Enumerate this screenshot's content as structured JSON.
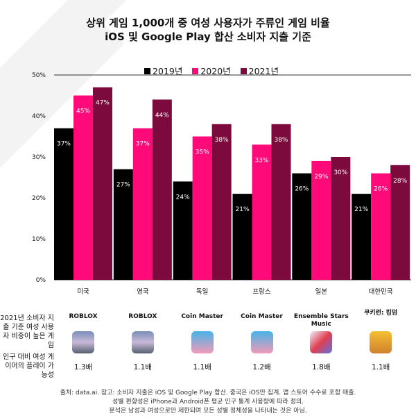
{
  "title": "상위 게임 1,000개 중 여성 사용자가 주류인 게임 비율",
  "subtitle": "iOS 및 Google Play 합산 소비자 지출 기준",
  "chart_data": {
    "type": "bar",
    "categories": [
      "미국",
      "영국",
      "독일",
      "프랑스",
      "일본",
      "대한민국"
    ],
    "series": [
      {
        "name": "2019년",
        "color": "#000000",
        "values": [
          37,
          27,
          24,
          21,
          26,
          21
        ]
      },
      {
        "name": "2020년",
        "color": "#ff0a78",
        "values": [
          45,
          37,
          35,
          33,
          29,
          26
        ]
      },
      {
        "name": "2021년",
        "color": "#7d0a3c",
        "values": [
          47,
          44,
          38,
          38,
          30,
          28
        ]
      }
    ],
    "ylim": [
      0,
      50
    ],
    "yticks": [
      "0%",
      "10%",
      "20%",
      "30%",
      "40%",
      "50%"
    ],
    "legend": "top",
    "grid": false
  },
  "table": {
    "row1_label": "2021년 소비자 지출 기준 여성 사용자 비중이 높은 게임",
    "row2_label": "인구 대비 여성 게이머의 플레이 가능성",
    "games": [
      {
        "name": "ROBLOX",
        "icon": "roblox-icon",
        "multiplier": "1.3배"
      },
      {
        "name": "ROBLOX",
        "icon": "roblox-icon",
        "multiplier": "1.1배"
      },
      {
        "name": "Coin Master",
        "icon": "coin-master-icon",
        "multiplier": "1.1배"
      },
      {
        "name": "Coin Master",
        "icon": "coin-master-icon",
        "multiplier": "1.2배"
      },
      {
        "name": "Ensemble Stars Music",
        "icon": "ensemble-stars-icon",
        "multiplier": "1.8배"
      },
      {
        "name": "쿠키런: 킹덤",
        "icon": "cookie-run-icon",
        "multiplier": "1.1배"
      }
    ]
  },
  "source": [
    "출처: data.ai. 참고: 소비자 지출은 iOS 및 Google Play 합산. 중국은 iOS만 집계. 앱 스토어 수수료 포함 매출.",
    "성별 편향성은 iPhone과 Android폰 평균 인구 통계 사용량에 따라 정의.",
    "분석은 남성과 여성으로만 제한되며 모든 성별 정체성을 나타내는 것은 아님."
  ]
}
